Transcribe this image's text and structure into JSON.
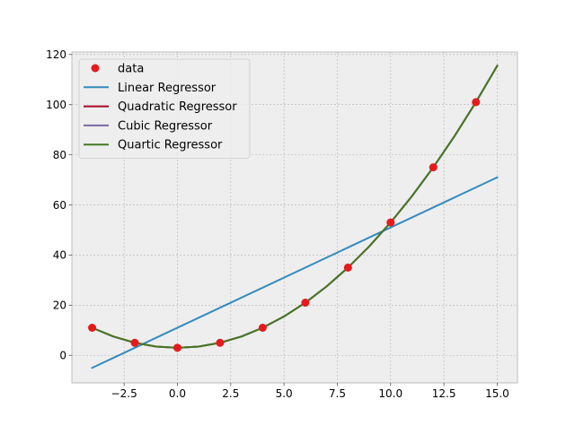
{
  "chart_data": {
    "type": "line",
    "title": "",
    "xlabel": "",
    "ylabel": "",
    "xlim": [
      -4.95,
      15.95
    ],
    "ylim": [
      -11,
      121
    ],
    "grid": true,
    "legend_position": "top-left",
    "x_ticks": [
      -2.5,
      0.0,
      2.5,
      5.0,
      7.5,
      10.0,
      12.5,
      15.0
    ],
    "x_tick_labels": [
      "−2.5",
      "0.0",
      "2.5",
      "5.0",
      "7.5",
      "10.0",
      "12.5",
      "15.0"
    ],
    "y_ticks": [
      0,
      20,
      40,
      60,
      80,
      100,
      120
    ],
    "y_tick_labels": [
      "0",
      "20",
      "40",
      "60",
      "80",
      "100",
      "120"
    ],
    "data_points": {
      "name": "data",
      "color": "#e41a1c",
      "x": [
        -4,
        -2,
        0,
        2,
        4,
        6,
        8,
        10,
        12,
        14
      ],
      "y": [
        11,
        5,
        3,
        5,
        11,
        21,
        35,
        53,
        75,
        101
      ]
    },
    "series": [
      {
        "name": "Linear Regressor",
        "color": "#348abd",
        "x": [
          -4,
          15
        ],
        "y": [
          -5,
          71
        ]
      },
      {
        "name": "Quadratic Regressor",
        "color": "#a60628",
        "x": [
          -4,
          -3,
          -2,
          -1,
          0,
          1,
          2,
          3,
          4,
          5,
          6,
          7,
          8,
          9,
          10,
          11,
          12,
          13,
          14,
          15
        ],
        "y": [
          11,
          7.5,
          5,
          3.5,
          3,
          3.5,
          5,
          7.5,
          11,
          15.5,
          21,
          27.5,
          35,
          43.5,
          53,
          63.5,
          75,
          87.5,
          101,
          115.5
        ]
      },
      {
        "name": "Cubic Regressor",
        "color": "#7a68a6",
        "x": [
          -4,
          -3,
          -2,
          -1,
          0,
          1,
          2,
          3,
          4,
          5,
          6,
          7,
          8,
          9,
          10,
          11,
          12,
          13,
          14,
          15
        ],
        "y": [
          11,
          7.5,
          5,
          3.5,
          3,
          3.5,
          5,
          7.5,
          11,
          15.5,
          21,
          27.5,
          35,
          43.5,
          53,
          63.5,
          75,
          87.5,
          101,
          115.5
        ]
      },
      {
        "name": "Quartic Regressor",
        "color": "#467821",
        "x": [
          -4,
          -3,
          -2,
          -1,
          0,
          1,
          2,
          3,
          4,
          5,
          6,
          7,
          8,
          9,
          10,
          11,
          12,
          13,
          14,
          15
        ],
        "y": [
          11,
          7.5,
          5,
          3.5,
          3,
          3.5,
          5,
          7.5,
          11,
          15.5,
          21,
          27.5,
          35,
          43.5,
          53,
          63.5,
          75,
          87.5,
          101,
          115.5
        ]
      }
    ]
  }
}
